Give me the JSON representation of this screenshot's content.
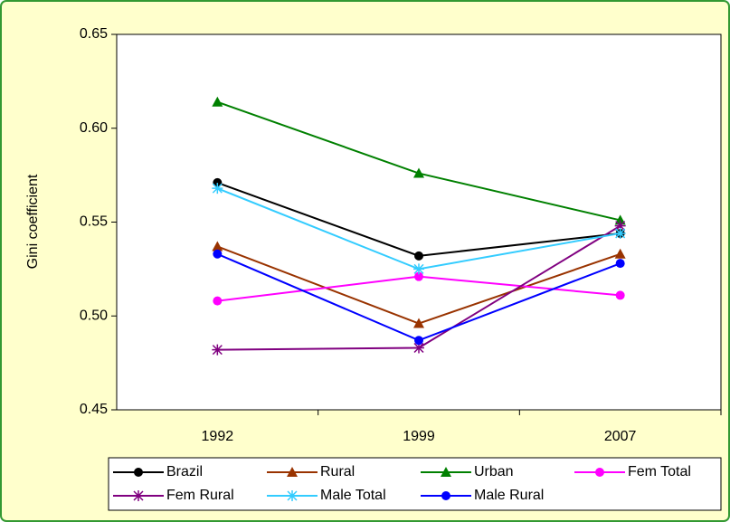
{
  "chart_data": {
    "type": "line",
    "y_label": "Gini coefficient",
    "categories": [
      "1992",
      "1999",
      "2007"
    ],
    "ylim": [
      0.45,
      0.65
    ],
    "yticks": [
      0.45,
      {
        "value": 0.5,
        "label": "0.50"
      },
      0.55,
      {
        "value": 0.6,
        "label": "0.60"
      },
      0.65
    ],
    "series": [
      {
        "name": "Brazil",
        "color": "#000000",
        "marker": "circle",
        "values": [
          0.571,
          0.532,
          0.544
        ]
      },
      {
        "name": "Rural",
        "color": "#993300",
        "marker": "triangle",
        "values": [
          0.537,
          0.496,
          0.533
        ]
      },
      {
        "name": "Urban",
        "color": "#008000",
        "marker": "triangle",
        "values": [
          0.614,
          0.576,
          0.551
        ]
      },
      {
        "name": "Fem Total",
        "color": "#ff00ff",
        "marker": "circle",
        "values": [
          0.508,
          0.521,
          0.511
        ]
      },
      {
        "name": "Fem Rural",
        "color": "#800080",
        "marker": "star",
        "values": [
          0.482,
          0.483,
          0.548
        ]
      },
      {
        "name": "Male Total",
        "color": "#33ccff",
        "marker": "star",
        "values": [
          0.568,
          0.525,
          0.544
        ]
      },
      {
        "name": "Male Rural",
        "color": "#0000ff",
        "marker": "circle",
        "values": [
          0.533,
          0.487,
          0.528
        ]
      }
    ]
  }
}
